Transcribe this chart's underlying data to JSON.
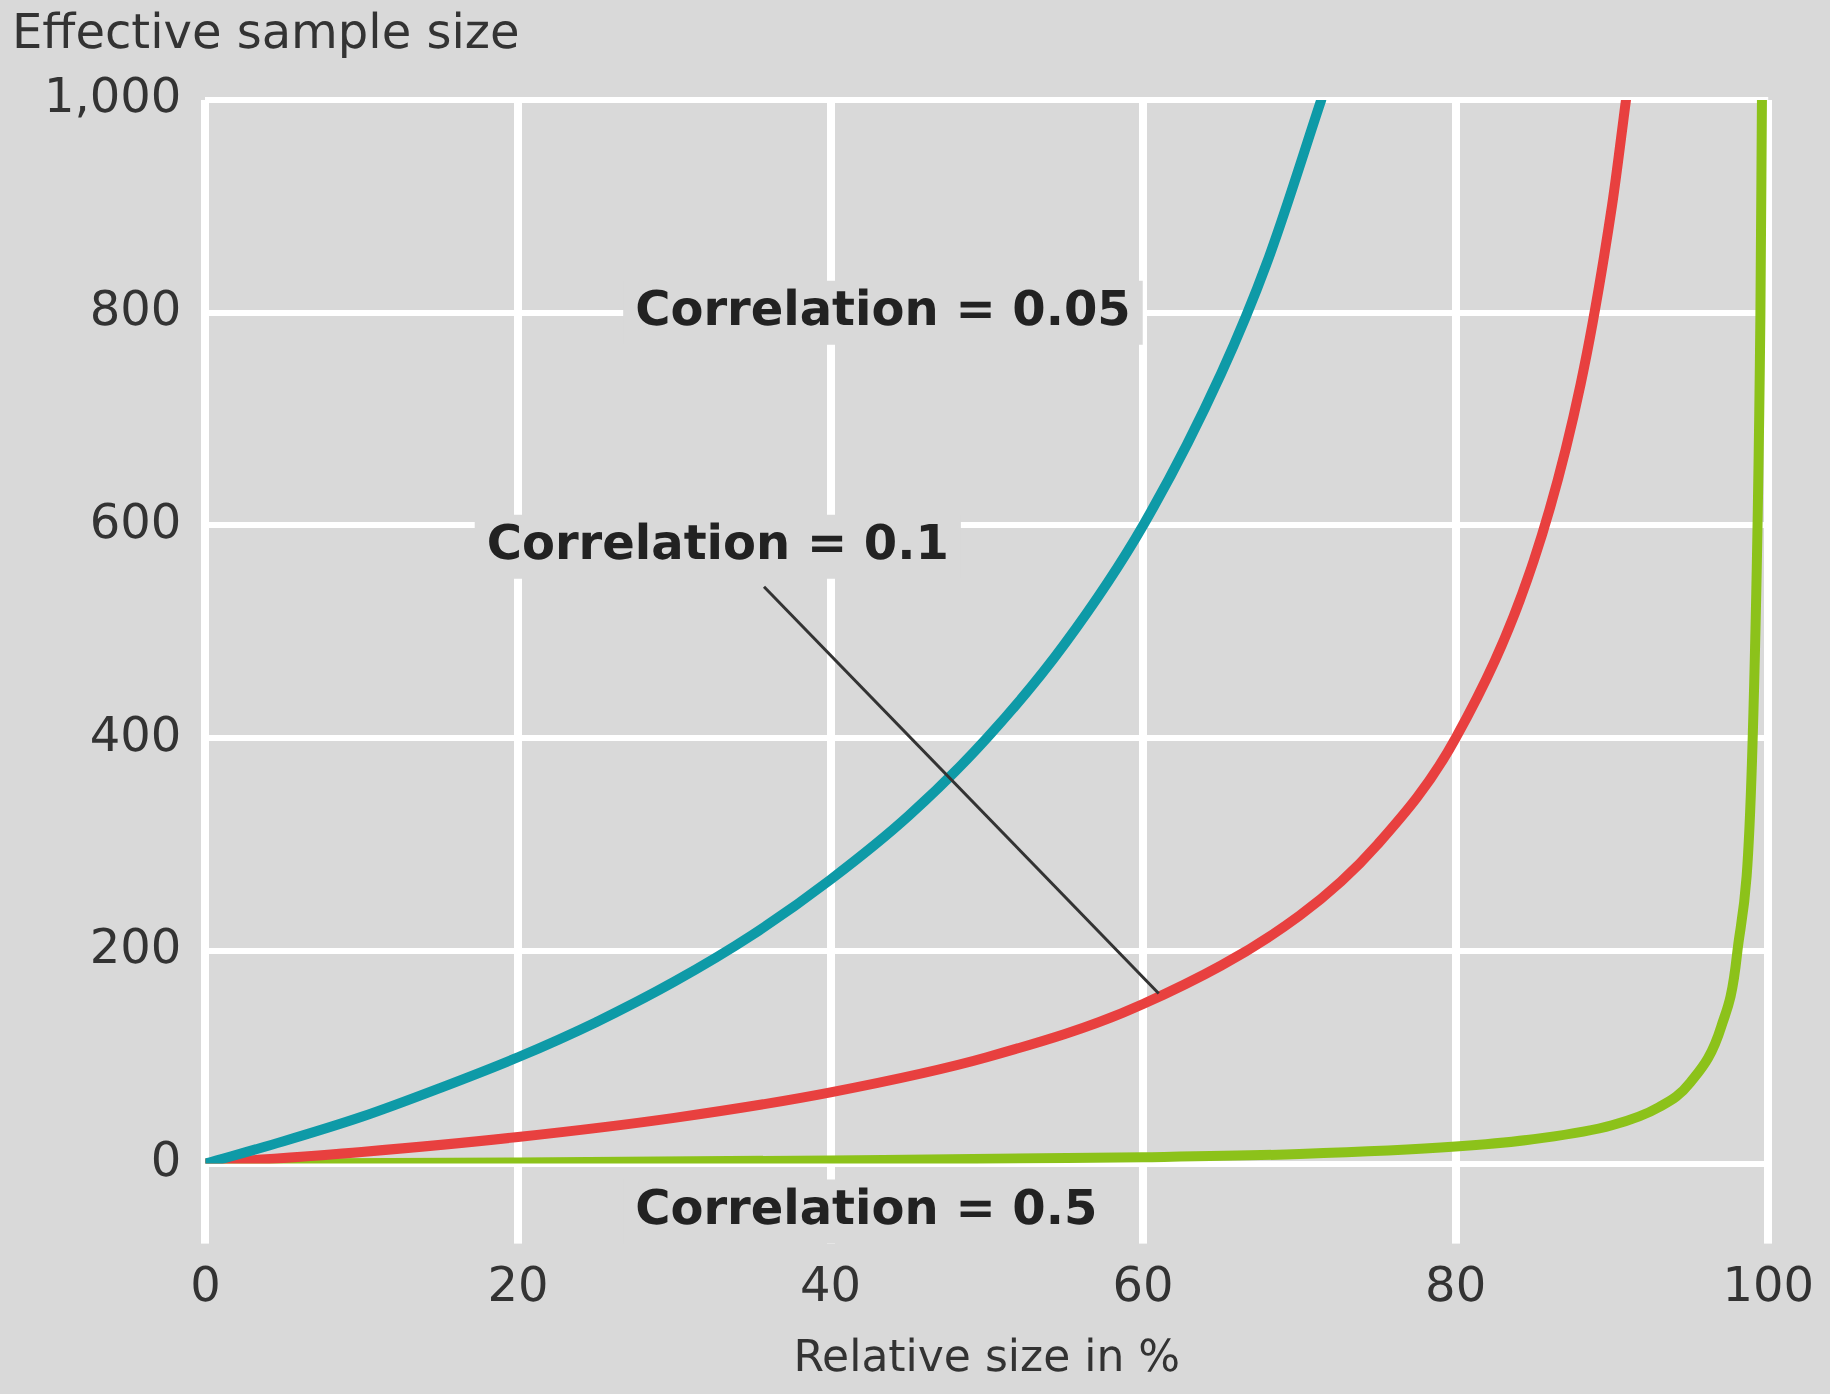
{
  "chart_data": {
    "type": "line",
    "ylabel": "Effective sample size",
    "xlabel": "Relative size in %",
    "xlim": [
      0,
      100
    ],
    "xticks": [
      0,
      20,
      40,
      60,
      80,
      100
    ],
    "ylim": [
      0,
      1000
    ],
    "yticks": [
      0,
      200,
      400,
      600,
      800,
      {
        "value": 1000,
        "label": "1,000"
      }
    ],
    "grid": true,
    "legend": false,
    "marker": "none",
    "line_style": "solid",
    "series": [
      {
        "color": "#0e9aa7",
        "x": [
          0,
          5,
          10,
          15,
          20,
          25,
          30,
          35,
          40,
          45,
          50,
          55,
          60,
          65,
          68,
          71.4
        ],
        "values": [
          0,
          21,
          44,
          71,
          100,
          133,
          171,
          215,
          267,
          327,
          400,
          489,
          600,
          743,
          850,
          1000
        ]
      },
      {
        "color": "#e8403f",
        "x": [
          0,
          10,
          20,
          30,
          40,
          50,
          60,
          70,
          75,
          80,
          85,
          88,
          90,
          90.9
        ],
        "values": [
          0,
          11,
          25,
          43,
          67,
          100,
          150,
          233,
          300,
          400,
          567,
          733,
          900,
          1000
        ]
      },
      {
        "color": "#8cc21a",
        "x": [
          0,
          20,
          40,
          60,
          70,
          80,
          85,
          90,
          93,
          95,
          97,
          98,
          99,
          99.5,
          99.6
        ],
        "values": [
          0,
          1,
          3,
          6,
          9,
          16,
          23,
          36,
          53,
          76,
          129,
          196,
          396,
          796,
          1000
        ]
      }
    ],
    "annotations": [
      "Correlation = 0.05",
      {
        "text": "Correlation = 0.1",
        "x": 61,
        "y": 160
      },
      "Correlation = 0.5"
    ]
  }
}
